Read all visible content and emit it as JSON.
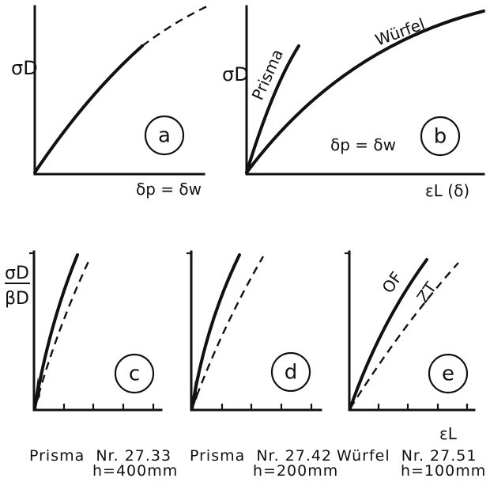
{
  "panel_a": {
    "y_axis_label": "σD",
    "x_axis_label": "δp = δw",
    "circle_label": "a"
  },
  "panel_b": {
    "y_axis_label": "σD",
    "x_axis_label": "εL (δ)",
    "curve_labels": [
      "Prisma",
      "Würfel"
    ],
    "inner_label": "δp = δw",
    "circle_label": "b"
  },
  "panel_c": {
    "y_axis_label": "σD / βD",
    "circle_label": "c",
    "caption_line1": "Prisma  Nr. 27.33",
    "caption_line2": "h=400mm"
  },
  "panel_d": {
    "circle_label": "d",
    "caption_line1": "Prisma  Nr. 27.42",
    "caption_line2": "h=200mm"
  },
  "panel_e": {
    "x_axis_label": "εL",
    "curve_labels": [
      "OF",
      "ZT"
    ],
    "circle_label": "e",
    "caption_line1": "Würfel  Nr. 27.51",
    "caption_line2": "h=100mm"
  }
}
